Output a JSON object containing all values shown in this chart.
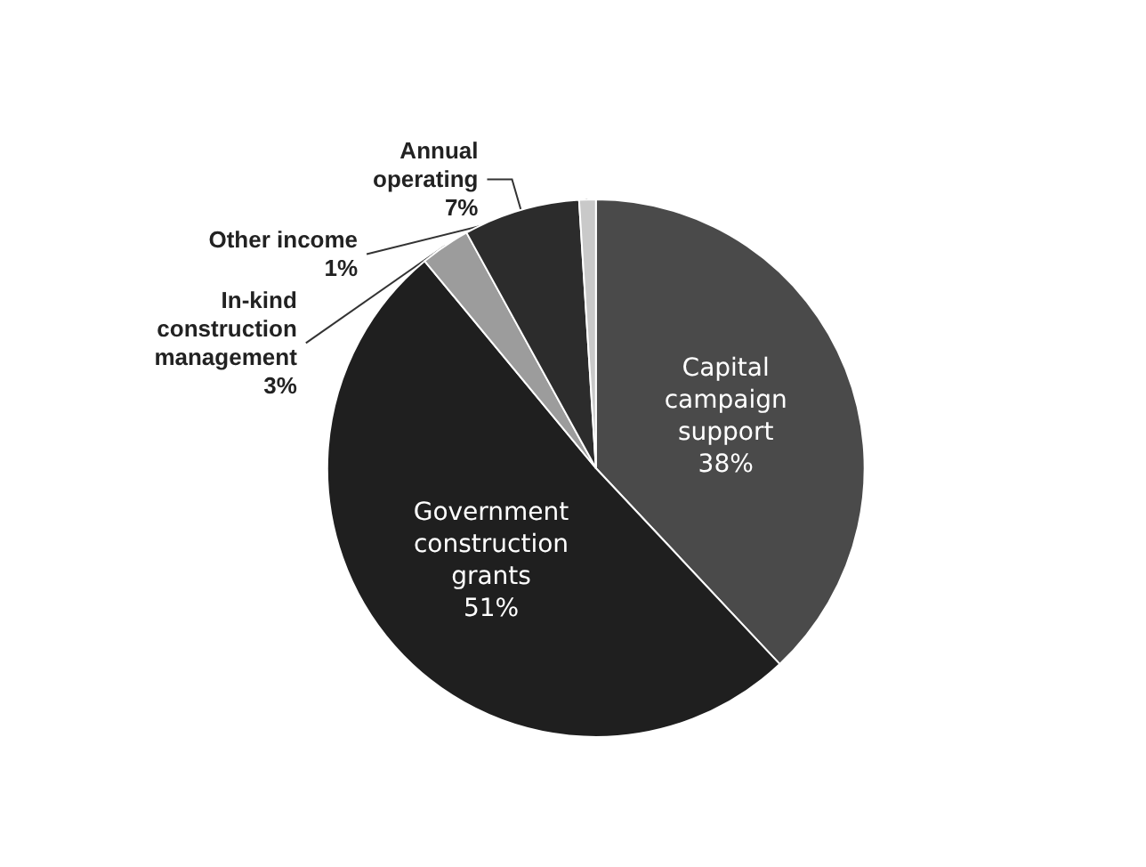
{
  "chart_data": {
    "type": "pie",
    "categories": [
      "Capital campaign support",
      "Government construction grants",
      "In-kind construction management",
      "Annual operating",
      "Other income"
    ],
    "values": [
      38,
      51,
      3,
      7,
      1
    ],
    "value_labels": [
      "38%",
      "51%",
      "3%",
      "7%",
      "1%"
    ],
    "colors": [
      "#4a4a4a",
      "#1f1f1f",
      "#9c9c9c",
      "#2c2c2c",
      "#c9c9c9"
    ],
    "legend": false
  }
}
